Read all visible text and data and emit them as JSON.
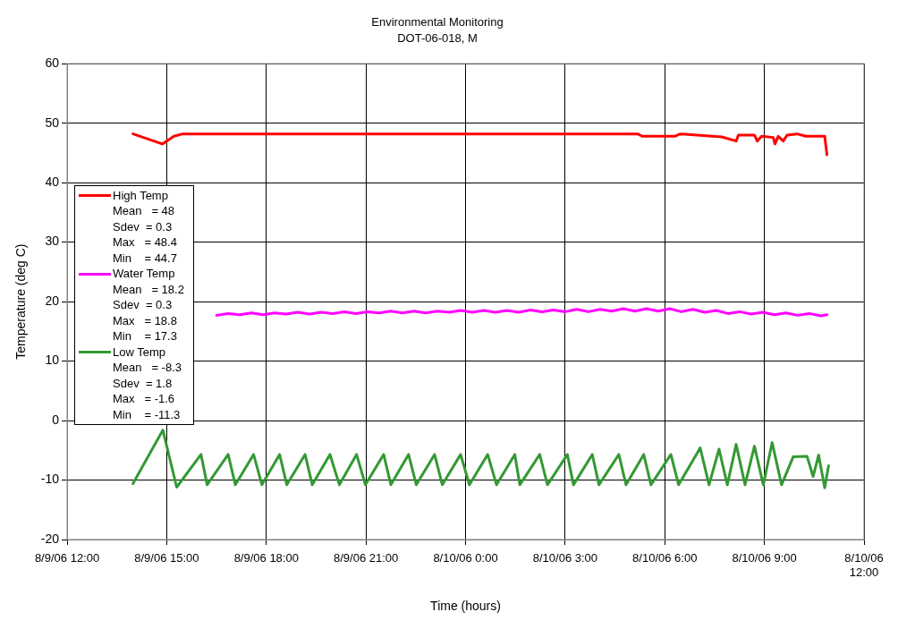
{
  "chart_data": {
    "type": "line",
    "title": "Environmental Monitoring",
    "subtitle": "DOT-06-018, M",
    "xlabel": "Time (hours)",
    "ylabel": "Temperature (deg C)",
    "xlim": [
      "--08-09T12:00",
      "--08-10T12:00"
    ],
    "xticks": [
      {
        "value": "--08-09T12:00",
        "label": "8/9/06 12:00"
      },
      {
        "value": "--08-09T15:00",
        "label": "8/9/06 15:00"
      },
      {
        "value": "--08-09T18:00",
        "label": "8/9/06 18:00"
      },
      {
        "value": "--08-09T21:00",
        "label": "8/9/06 21:00"
      },
      {
        "value": "--08-10T00:00",
        "label": "8/10/06 0:00"
      },
      {
        "value": "--08-10T03:00",
        "label": "8/10/06 3:00"
      },
      {
        "value": "--08-10T06:00",
        "label": "8/10/06 6:00"
      },
      {
        "value": "--08-10T09:00",
        "label": "8/10/06 9:00"
      },
      {
        "value": "--08-10T12:00",
        "label": "8/10/06 12:00"
      }
    ],
    "ylim": [
      -20,
      60
    ],
    "yticks": [
      -20,
      -10,
      0,
      10,
      20,
      30,
      40,
      50,
      60
    ],
    "grid": true,
    "legend": "left",
    "marker": "none",
    "line_style": "solid",
    "annotations": [
      "Mean   = 48",
      "Sdev  = 0.3",
      "Max   = 48.4",
      "Min    = 44.7",
      "Mean   = 18.2",
      "Sdev  = 0.3",
      "Max   = 18.8",
      "Min    = 17.3",
      "Mean   = -8.3",
      "Sdev  = 1.8",
      "Max   = -1.6",
      "Min    = -11.3"
    ],
    "series": [
      {
        "name": "High Temp",
        "color": "#ff0000",
        "x": [
          "--08-09T13:59",
          "--08-09T14:52",
          "--08-09T15:13",
          "--08-09T15:29",
          "--08-10T05:11",
          "--08-10T05:19",
          "--08-10T06:18",
          "--08-10T06:28",
          "--08-10T07:43",
          "--08-10T08:09",
          "--08-10T08:13",
          "--08-10T08:42",
          "--08-10T08:47",
          "--08-10T08:55",
          "--08-10T09:16",
          "--08-10T09:19",
          "--08-10T09:25",
          "--08-10T09:34",
          "--08-10T09:41",
          "--08-10T09:59",
          "--08-10T10:15",
          "--08-10T10:49",
          "--08-10T10:53"
        ],
        "values": [
          48.2,
          46.5,
          47.8,
          48.2,
          48.2,
          47.8,
          47.8,
          48.2,
          47.7,
          47.0,
          48.0,
          48.0,
          47.0,
          47.8,
          47.6,
          46.5,
          47.8,
          47.0,
          48.0,
          48.2,
          47.8,
          47.8,
          44.7
        ]
      },
      {
        "name": "Water Temp",
        "color": "#ff00ff",
        "x": [
          "--08-09T16:30",
          "--08-09T16:51",
          "--08-09T17:12",
          "--08-09T17:33",
          "--08-09T17:54",
          "--08-09T18:15",
          "--08-09T18:36",
          "--08-09T18:57",
          "--08-09T19:18",
          "--08-09T19:39",
          "--08-09T20:00",
          "--08-09T20:21",
          "--08-09T20:42",
          "--08-09T21:03",
          "--08-09T21:24",
          "--08-09T21:45",
          "--08-09T22:06",
          "--08-09T22:27",
          "--08-09T22:48",
          "--08-09T23:09",
          "--08-09T23:30",
          "--08-09T23:51",
          "--08-10T00:12",
          "--08-10T00:33",
          "--08-10T00:54",
          "--08-10T01:15",
          "--08-10T01:36",
          "--08-10T01:57",
          "--08-10T02:18",
          "--08-10T02:39",
          "--08-10T03:00",
          "--08-10T03:21",
          "--08-10T03:42",
          "--08-10T04:03",
          "--08-10T04:24",
          "--08-10T04:45",
          "--08-10T05:06",
          "--08-10T05:27",
          "--08-10T05:48",
          "--08-10T06:09",
          "--08-10T06:30",
          "--08-10T06:51",
          "--08-10T07:12",
          "--08-10T07:33",
          "--08-10T07:54",
          "--08-10T08:15",
          "--08-10T08:36",
          "--08-10T08:57",
          "--08-10T09:18",
          "--08-10T09:39",
          "--08-10T10:00",
          "--08-10T10:21",
          "--08-10T10:42",
          "--08-10T10:53"
        ],
        "values": [
          17.7,
          18.0,
          17.8,
          18.1,
          17.8,
          18.1,
          17.9,
          18.2,
          17.9,
          18.2,
          18.0,
          18.3,
          18.0,
          18.3,
          18.1,
          18.4,
          18.1,
          18.4,
          18.1,
          18.4,
          18.2,
          18.5,
          18.2,
          18.5,
          18.2,
          18.5,
          18.2,
          18.6,
          18.3,
          18.6,
          18.3,
          18.7,
          18.3,
          18.7,
          18.4,
          18.8,
          18.4,
          18.8,
          18.4,
          18.8,
          18.3,
          18.7,
          18.2,
          18.5,
          18.0,
          18.3,
          17.9,
          18.2,
          17.8,
          18.1,
          17.7,
          18.0,
          17.6,
          17.8
        ]
      },
      {
        "name": "Low Temp",
        "color": "#339933",
        "x": [
          "--08-09T13:59",
          "--08-09T14:53",
          "--08-09T15:18",
          "--08-09T16:02",
          "--08-09T16:13",
          "--08-09T16:51",
          "--08-09T17:04",
          "--08-09T17:37",
          "--08-09T17:52",
          "--08-09T18:24",
          "--08-09T18:37",
          "--08-09T19:10",
          "--08-09T19:23",
          "--08-09T19:55",
          "--08-09T20:12",
          "--08-09T20:43",
          "--08-09T20:59",
          "--08-09T21:32",
          "--08-09T21:45",
          "--08-09T22:17",
          "--08-09T22:31",
          "--08-09T23:04",
          "--08-09T23:18",
          "--08-09T23:51",
          "--08-10T00:07",
          "--08-10T00:40",
          "--08-10T00:56",
          "--08-10T01:29",
          "--08-10T01:38",
          "--08-10T02:14",
          "--08-10T02:28",
          "--08-10T03:04",
          "--08-10T03:15",
          "--08-10T03:49",
          "--08-10T04:01",
          "--08-10T04:37",
          "--08-10T04:50",
          "--08-10T05:22",
          "--08-10T05:35",
          "--08-10T06:11",
          "--08-10T06:25",
          "--08-10T07:04",
          "--08-10T07:20",
          "--08-10T07:38",
          "--08-10T07:53",
          "--08-10T08:09",
          "--08-10T08:25",
          "--08-10T08:42",
          "--08-10T08:58",
          "--08-10T09:14",
          "--08-10T09:31",
          "--08-10T09:52",
          "--08-10T10:17",
          "--08-10T10:28",
          "--08-10T10:38",
          "--08-10T10:49",
          "--08-10T10:56"
        ],
        "values": [
          -10.6,
          -1.6,
          -11.2,
          -5.7,
          -10.8,
          -5.7,
          -10.8,
          -5.7,
          -10.8,
          -5.7,
          -10.8,
          -5.7,
          -10.8,
          -5.7,
          -10.8,
          -5.7,
          -10.8,
          -5.7,
          -10.8,
          -5.7,
          -10.8,
          -5.7,
          -10.8,
          -5.7,
          -10.8,
          -5.7,
          -10.8,
          -5.7,
          -10.8,
          -5.7,
          -10.8,
          -5.7,
          -10.8,
          -5.7,
          -10.8,
          -5.7,
          -10.8,
          -5.7,
          -10.8,
          -5.7,
          -10.8,
          -4.6,
          -10.8,
          -4.8,
          -10.8,
          -4.0,
          -10.8,
          -4.3,
          -10.8,
          -3.7,
          -10.8,
          -6.1,
          -6.0,
          -9.4,
          -5.8,
          -11.3,
          -7.6
        ]
      }
    ]
  }
}
